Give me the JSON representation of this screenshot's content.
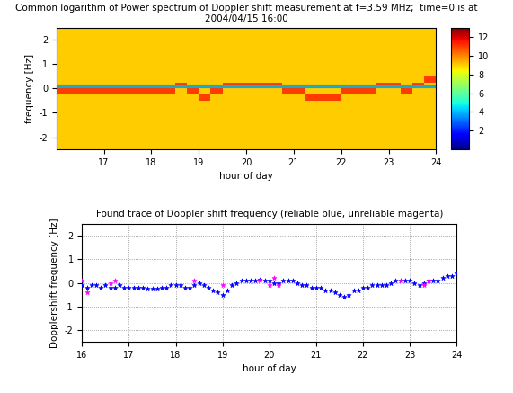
{
  "chart_data": [
    {
      "type": "heatmap",
      "title": "Common logarithm of Power spectrum of Doppler shift measurement at f=3.59 MHz;  time=0 is at 2004/04/15 16:00",
      "x_label": "hour of day",
      "y_label": "frequency [Hz]",
      "x_edges": [
        16,
        16.25,
        16.5,
        16.75,
        17,
        17.25,
        17.5,
        17.75,
        18,
        18.25,
        18.5,
        18.75,
        19,
        19.25,
        19.5,
        19.75,
        20,
        20.25,
        20.5,
        20.75,
        21,
        21.25,
        21.5,
        21.75,
        22,
        22.25,
        22.5,
        22.75,
        23,
        23.25,
        23.5,
        23.75,
        24
      ],
      "y_edges": [
        -2.5,
        -2.25,
        -2,
        -1.75,
        -1.5,
        -1.25,
        -1,
        -0.75,
        -0.5,
        -0.25,
        0,
        0.25,
        0.5,
        0.75,
        1,
        1.25,
        1.5,
        1.75,
        2,
        2.25,
        2.5
      ],
      "cells": [
        [
          9,
          9,
          9,
          9,
          9,
          9,
          9,
          9,
          9,
          9,
          9,
          9,
          9,
          9,
          9,
          9,
          9,
          9,
          9,
          9,
          9,
          9,
          9,
          9,
          9,
          9,
          9,
          9,
          9,
          9,
          9,
          9
        ],
        [
          9,
          9,
          9,
          9,
          9,
          9,
          9,
          9,
          9,
          9,
          9,
          9,
          9,
          9,
          9,
          9,
          9,
          9,
          9,
          9,
          9,
          9,
          9,
          9,
          9,
          9,
          9,
          9,
          9,
          9,
          9,
          9
        ],
        [
          9,
          9,
          9,
          9,
          9,
          9,
          9,
          9,
          9,
          9,
          9,
          9,
          9,
          9,
          9,
          9,
          9,
          9,
          9,
          9,
          9,
          9,
          9,
          9,
          9,
          9,
          9,
          9,
          9,
          9,
          9,
          9
        ],
        [
          9,
          9,
          9,
          9,
          9,
          9,
          9,
          9,
          9,
          9,
          9,
          9,
          9,
          9,
          9,
          9,
          9,
          9,
          9,
          9,
          9,
          9,
          9,
          9,
          9,
          9,
          9,
          9,
          9,
          9,
          9,
          9
        ],
        [
          9,
          9,
          9,
          9,
          9,
          9,
          9,
          9,
          9,
          9,
          9,
          9,
          9,
          9,
          9,
          9,
          9,
          9,
          9,
          9,
          9,
          9,
          9,
          9,
          9,
          9,
          9,
          9,
          9,
          9,
          9,
          9
        ],
        [
          9,
          9,
          9,
          9,
          9,
          9,
          9,
          9,
          9,
          9,
          9,
          9,
          9,
          9,
          9,
          9,
          9,
          9,
          9,
          9,
          9,
          9,
          9,
          9,
          9,
          9,
          9,
          9,
          9,
          9,
          9,
          9
        ],
        [
          9,
          9,
          9,
          9,
          9,
          9,
          9,
          9,
          9,
          9,
          9,
          9,
          9,
          9,
          9,
          9,
          9,
          9,
          9,
          9,
          9,
          9,
          9,
          9,
          9,
          9,
          9,
          9,
          9,
          9,
          9,
          9
        ],
        [
          9,
          9,
          9,
          9,
          9,
          9,
          9,
          9,
          9,
          9,
          9,
          9,
          9,
          9,
          9,
          9,
          9,
          9,
          9,
          9,
          9,
          9,
          9,
          9,
          9,
          9,
          9,
          9,
          9,
          9,
          9,
          9
        ],
        [
          9,
          9,
          9,
          9,
          9,
          9,
          9,
          9,
          9,
          9,
          9,
          9,
          11,
          9,
          9,
          9,
          9,
          9,
          9,
          9,
          9,
          11,
          11,
          11,
          9,
          9,
          9,
          9,
          9,
          9,
          9,
          9
        ],
        [
          11,
          11,
          11,
          11,
          11,
          11,
          11,
          11,
          11,
          11,
          9,
          11,
          9,
          11,
          9,
          9,
          9,
          9,
          9,
          11,
          11,
          9,
          9,
          9,
          11,
          11,
          11,
          9,
          9,
          11,
          9,
          9
        ],
        [
          9,
          9,
          9,
          9,
          9,
          9,
          9,
          9,
          9,
          9,
          11,
          9,
          9,
          9,
          11,
          11,
          11,
          11,
          11,
          9,
          9,
          9,
          9,
          9,
          9,
          9,
          9,
          11,
          11,
          9,
          11,
          9
        ],
        [
          9,
          9,
          9,
          9,
          9,
          9,
          9,
          9,
          9,
          9,
          9,
          9,
          9,
          9,
          9,
          9,
          9,
          9,
          9,
          9,
          9,
          9,
          9,
          9,
          9,
          9,
          9,
          9,
          9,
          9,
          9,
          11
        ],
        [
          9,
          9,
          9,
          9,
          9,
          9,
          9,
          9,
          9,
          9,
          9,
          9,
          9,
          9,
          9,
          9,
          9,
          9,
          9,
          9,
          9,
          9,
          9,
          9,
          9,
          9,
          9,
          9,
          9,
          9,
          9,
          9
        ],
        [
          9,
          9,
          9,
          9,
          9,
          9,
          9,
          9,
          9,
          9,
          9,
          9,
          9,
          9,
          9,
          9,
          9,
          9,
          9,
          9,
          9,
          9,
          9,
          9,
          9,
          9,
          9,
          9,
          9,
          9,
          9,
          9
        ],
        [
          9,
          9,
          9,
          9,
          9,
          9,
          9,
          9,
          9,
          9,
          9,
          9,
          9,
          9,
          9,
          9,
          9,
          9,
          9,
          9,
          9,
          9,
          9,
          9,
          9,
          9,
          9,
          9,
          9,
          9,
          9,
          9
        ],
        [
          9,
          9,
          9,
          9,
          9,
          9,
          9,
          9,
          9,
          9,
          9,
          9,
          9,
          9,
          9,
          9,
          9,
          9,
          9,
          9,
          9,
          9,
          9,
          9,
          9,
          9,
          9,
          9,
          9,
          9,
          9,
          9
        ],
        [
          9,
          9,
          9,
          9,
          9,
          9,
          9,
          9,
          9,
          9,
          9,
          9,
          9,
          9,
          9,
          9,
          9,
          9,
          9,
          9,
          9,
          9,
          9,
          9,
          9,
          9,
          9,
          9,
          9,
          9,
          9,
          9
        ],
        [
          9,
          9,
          9,
          9,
          9,
          9,
          9,
          9,
          9,
          9,
          9,
          9,
          9,
          9,
          9,
          9,
          9,
          9,
          9,
          9,
          9,
          9,
          9,
          9,
          9,
          9,
          9,
          9,
          9,
          9,
          9,
          9
        ],
        [
          9,
          9,
          9,
          9,
          9,
          9,
          9,
          9,
          9,
          9,
          9,
          9,
          9,
          9,
          9,
          9,
          9,
          9,
          9,
          9,
          9,
          9,
          9,
          9,
          9,
          9,
          9,
          9,
          9,
          9,
          9,
          9
        ],
        [
          9,
          9,
          9,
          9,
          9,
          9,
          9,
          9,
          9,
          9,
          9,
          9,
          9,
          9,
          9,
          9,
          9,
          9,
          9,
          9,
          9,
          9,
          9,
          9,
          9,
          9,
          9,
          9,
          9,
          9,
          9,
          9
        ]
      ],
      "colorbar": {
        "range": [
          0,
          13
        ],
        "ticks": [
          2,
          4,
          6,
          8,
          10,
          12
        ]
      },
      "hline": 0.1,
      "xlim": [
        16,
        24
      ],
      "xticks": [
        17,
        18,
        19,
        20,
        21,
        22,
        23,
        24
      ],
      "ylim": [
        -2.5,
        2.5
      ],
      "yticks": [
        -2,
        -1,
        0,
        1,
        2
      ]
    },
    {
      "type": "scatter",
      "title": "Found trace of Doppler shift frequency (reliable blue, unreliable magenta)",
      "x_label": "hour of day",
      "y_label": "Dopplershift frequency [Hz]",
      "series": [
        {
          "name": "reliable",
          "color": "blue",
          "marker": "*",
          "x": [
            16.0,
            16.1,
            16.2,
            16.3,
            16.4,
            16.5,
            16.6,
            16.7,
            16.8,
            16.9,
            17.0,
            17.1,
            17.2,
            17.3,
            17.4,
            17.5,
            17.6,
            17.7,
            17.8,
            17.9,
            18.0,
            18.1,
            18.2,
            18.3,
            18.4,
            18.5,
            18.6,
            18.7,
            18.8,
            18.9,
            19.0,
            19.1,
            19.2,
            19.3,
            19.4,
            19.5,
            19.6,
            19.7,
            19.8,
            19.9,
            20.0,
            20.1,
            20.2,
            20.3,
            20.4,
            20.5,
            20.6,
            20.7,
            20.8,
            20.9,
            21.0,
            21.1,
            21.2,
            21.3,
            21.4,
            21.5,
            21.6,
            21.7,
            21.8,
            21.9,
            22.0,
            22.1,
            22.2,
            22.3,
            22.4,
            22.5,
            22.6,
            22.7,
            22.8,
            22.9,
            23.0,
            23.1,
            23.2,
            23.3,
            23.4,
            23.5,
            23.6,
            23.7,
            23.8,
            23.9,
            24.0
          ],
          "values": [
            -0.1,
            -0.2,
            -0.1,
            -0.1,
            -0.2,
            -0.1,
            -0.2,
            -0.2,
            -0.1,
            -0.2,
            -0.2,
            -0.2,
            -0.2,
            -0.2,
            -0.25,
            -0.25,
            -0.25,
            -0.2,
            -0.2,
            -0.1,
            -0.1,
            -0.1,
            -0.2,
            -0.2,
            -0.1,
            0.0,
            -0.1,
            -0.2,
            -0.3,
            -0.4,
            -0.5,
            -0.3,
            -0.1,
            0.0,
            0.1,
            0.1,
            0.1,
            0.1,
            0.15,
            0.1,
            0.1,
            0.0,
            0.0,
            0.1,
            0.1,
            0.1,
            0.0,
            -0.1,
            -0.1,
            -0.2,
            -0.2,
            -0.2,
            -0.3,
            -0.3,
            -0.4,
            -0.5,
            -0.6,
            -0.5,
            -0.3,
            -0.3,
            -0.2,
            -0.2,
            -0.1,
            -0.1,
            -0.1,
            -0.1,
            0.0,
            0.1,
            0.1,
            0.1,
            0.1,
            0.0,
            -0.1,
            0.0,
            0.1,
            0.1,
            0.1,
            0.2,
            0.3,
            0.3,
            0.4
          ]
        },
        {
          "name": "unreliable",
          "color": "magenta",
          "marker": "*",
          "x": [
            16.0,
            16.1,
            16.6,
            16.7,
            18.4,
            19.0,
            19.8,
            20.0,
            20.1,
            20.2,
            22.8,
            23.3,
            23.4
          ],
          "values": [
            0.1,
            -0.4,
            0.0,
            0.1,
            0.1,
            -0.1,
            0.1,
            -0.1,
            0.2,
            -0.1,
            0.1,
            -0.1,
            0.1
          ]
        }
      ],
      "grid": true,
      "xlim": [
        16,
        24
      ],
      "xticks": [
        16,
        17,
        18,
        19,
        20,
        21,
        22,
        23,
        24
      ],
      "ylim": [
        -2.5,
        2.5
      ],
      "yticks": [
        -2,
        -1,
        0,
        1,
        2
      ]
    }
  ]
}
